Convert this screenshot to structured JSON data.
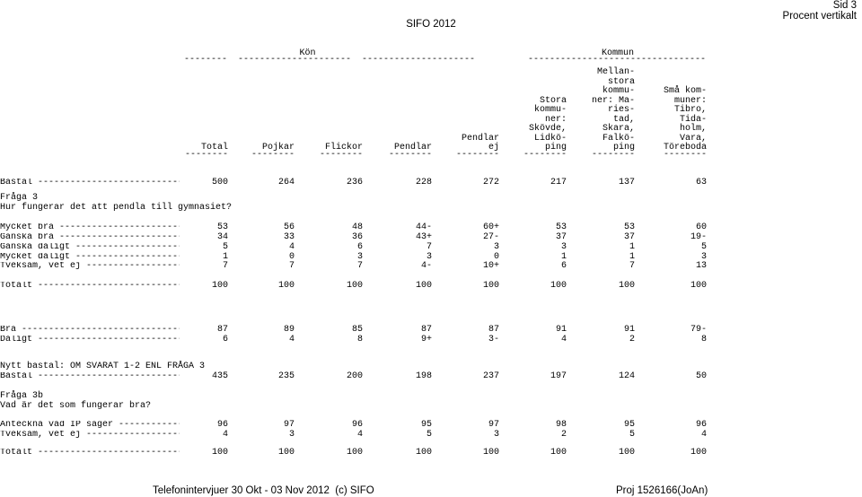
{
  "page": {
    "page_label": "Sid 3",
    "subtitle": "Procent vertikalt",
    "report_title": "SIFO 2012",
    "footer_left": "Telefonintervjuer 30 Okt - 03 Nov 2012  (c) SIFO",
    "footer_right": "Proj 1526166(JoAn)"
  },
  "header": {
    "groups": [
      {
        "label": "Kön",
        "rule": "--------  ---------------------  ---------------------"
      },
      {
        "label": "Kommun",
        "rule": "---------------------------------"
      }
    ],
    "rule_first": "--------",
    "columns": [
      {
        "lines": [
          "Total"
        ],
        "underline": "--------"
      },
      {
        "lines": [
          "Pojkar"
        ],
        "underline": "--------"
      },
      {
        "lines": [
          "Flickor"
        ],
        "underline": "--------"
      },
      {
        "lines": [
          "Pendlar"
        ],
        "underline": "--------"
      },
      {
        "lines": [
          "Pendlar",
          "ej"
        ],
        "underline": "--------"
      },
      {
        "lines": [
          "Stora",
          "kommu-",
          "ner:",
          "Skövde,",
          "Lidkö-",
          "ping"
        ],
        "underline": "--------"
      },
      {
        "lines": [
          "Mellan-",
          "stora",
          "kommu-",
          "ner: Ma-",
          "ries-",
          "tad,",
          "Skara,",
          "Falkö-",
          "ping"
        ],
        "underline": "--------"
      },
      {
        "lines": [
          "Små kom-",
          "muner:",
          "Tibro,",
          "Tida-",
          "holm,",
          "Vara,",
          "Töreboda"
        ],
        "underline": "--------"
      }
    ]
  },
  "body": {
    "rows": [
      {
        "type": "data",
        "label": "Bastal ---------------------------",
        "values": [
          "500",
          "264",
          "236",
          "228",
          "272",
          "217",
          "137",
          "63"
        ]
      },
      {
        "type": "text",
        "text": "Fråga 3"
      },
      {
        "type": "text",
        "text": "Hur fungerar det att pendla till gymnasiet?"
      },
      {
        "type": "data",
        "label": "Mycket bra -----------------------",
        "values": [
          "53",
          "56",
          "48",
          "44-",
          "60+",
          "53",
          "53",
          "60"
        ]
      },
      {
        "type": "data",
        "label": "Ganska bra -----------------------",
        "values": [
          "34",
          "33",
          "36",
          "43+",
          "27-",
          "37",
          "37",
          "19-"
        ]
      },
      {
        "type": "data",
        "label": "Ganska dåligt --------------------",
        "values": [
          "5",
          "4",
          "6",
          "7",
          "3",
          "3",
          "1",
          "5"
        ]
      },
      {
        "type": "data",
        "label": "Mycket dåligt --------------------",
        "values": [
          "1",
          "0",
          "3",
          "3",
          "0",
          "1",
          "1",
          "3"
        ]
      },
      {
        "type": "data",
        "label": "Tveksam, vet ej ------------------",
        "values": [
          "7",
          "7",
          "7",
          "4-",
          "10+",
          "6",
          "7",
          "13"
        ]
      },
      {
        "type": "data",
        "label": "Totalt ---------------------------",
        "values": [
          "100",
          "100",
          "100",
          "100",
          "100",
          "100",
          "100",
          "100"
        ]
      },
      {
        "type": "data",
        "label": "Bra ------------------------------",
        "values": [
          "87",
          "89",
          "85",
          "87",
          "87",
          "91",
          "91",
          "79-"
        ]
      },
      {
        "type": "data",
        "label": "Dåligt ---------------------------",
        "values": [
          "6",
          "4",
          "8",
          "9+",
          "3-",
          "4",
          "2",
          "8"
        ]
      },
      {
        "type": "text",
        "text": "Nytt bastal: OM SVARAT 1-2 ENL FRÅGA 3"
      },
      {
        "type": "data",
        "label": "Bastal ---------------------------",
        "values": [
          "435",
          "235",
          "200",
          "198",
          "237",
          "197",
          "124",
          "50"
        ]
      },
      {
        "type": "text",
        "text": "Fråga 3b"
      },
      {
        "type": "text",
        "text": "Vad är det som fungerar bra?"
      },
      {
        "type": "data",
        "label": "Anteckna vad IP säger ------------",
        "values": [
          "96",
          "97",
          "96",
          "95",
          "97",
          "98",
          "95",
          "96"
        ]
      },
      {
        "type": "data",
        "label": "Tveksam, vet ej ------------------",
        "values": [
          "4",
          "3",
          "4",
          "5",
          "3",
          "2",
          "5",
          "4"
        ]
      },
      {
        "type": "data",
        "label": "Totalt ---------------------------",
        "values": [
          "100",
          "100",
          "100",
          "100",
          "100",
          "100",
          "100",
          "100"
        ]
      }
    ]
  }
}
